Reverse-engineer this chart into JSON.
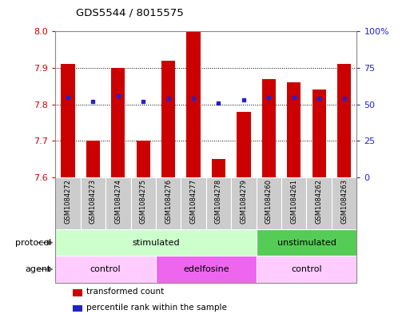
{
  "title": "GDS5544 / 8015575",
  "samples": [
    "GSM1084272",
    "GSM1084273",
    "GSM1084274",
    "GSM1084275",
    "GSM1084276",
    "GSM1084277",
    "GSM1084278",
    "GSM1084279",
    "GSM1084260",
    "GSM1084261",
    "GSM1084262",
    "GSM1084263"
  ],
  "bar_values": [
    7.91,
    7.7,
    7.9,
    7.7,
    7.92,
    8.0,
    7.65,
    7.78,
    7.87,
    7.86,
    7.84,
    7.91
  ],
  "dot_values": [
    55,
    52,
    56,
    52,
    54,
    54,
    51,
    53,
    55,
    55,
    54,
    54
  ],
  "ymin": 7.6,
  "ymax": 8.0,
  "y2min": 0,
  "y2max": 100,
  "yticks": [
    7.6,
    7.7,
    7.8,
    7.9,
    8.0
  ],
  "y2ticks": [
    0,
    25,
    50,
    75,
    100
  ],
  "y2ticklabels": [
    "0",
    "25",
    "50",
    "75",
    "100%"
  ],
  "bar_color": "#cc0000",
  "dot_color": "#2222cc",
  "bar_width": 0.55,
  "protocol_groups": [
    {
      "label": "stimulated",
      "start": 0,
      "end": 8,
      "color": "#ccffcc"
    },
    {
      "label": "unstimulated",
      "start": 8,
      "end": 12,
      "color": "#55cc55"
    }
  ],
  "agent_groups": [
    {
      "label": "control",
      "start": 0,
      "end": 4,
      "color": "#ffccff"
    },
    {
      "label": "edelfosine",
      "start": 4,
      "end": 8,
      "color": "#ee66ee"
    },
    {
      "label": "control",
      "start": 8,
      "end": 12,
      "color": "#ffccff"
    }
  ],
  "legend_items": [
    {
      "label": "transformed count",
      "color": "#cc0000"
    },
    {
      "label": "percentile rank within the sample",
      "color": "#2222cc"
    }
  ],
  "left_tick_color": "#cc0000",
  "right_tick_color": "#2222cc",
  "bg_color": "#ffffff",
  "plot_bg_color": "#ffffff",
  "grid_color": "#000000",
  "sample_box_color": "#cccccc",
  "frame_color": "#aaaaaa"
}
